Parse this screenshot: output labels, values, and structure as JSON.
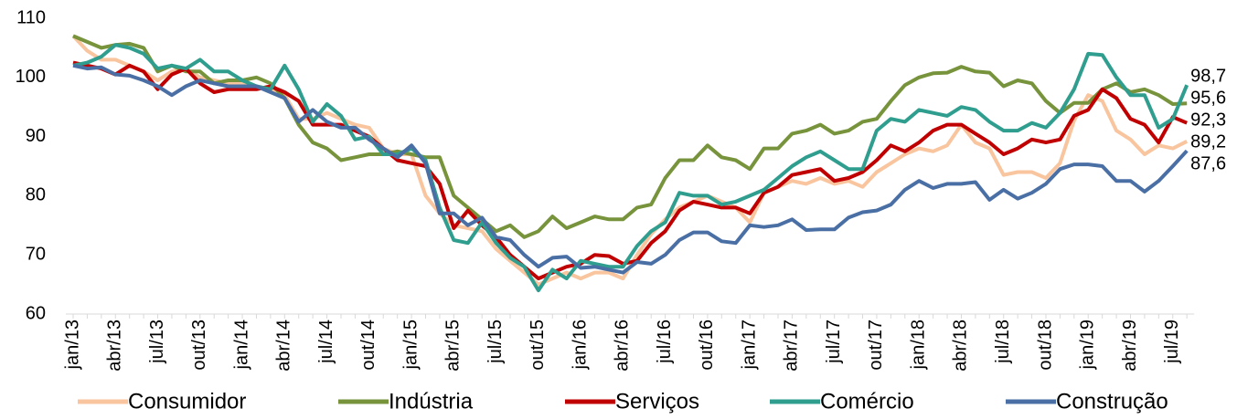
{
  "chart_data": {
    "type": "line",
    "categories": [
      "jan/13",
      null,
      null,
      "abr/13",
      null,
      null,
      "jul/13",
      null,
      null,
      "out/13",
      null,
      null,
      "jan/14",
      null,
      null,
      "abr/14",
      null,
      null,
      "jul/14",
      null,
      null,
      "out/14",
      null,
      null,
      "jan/15",
      null,
      null,
      "abr/15",
      null,
      null,
      "jul/15",
      null,
      null,
      "out/15",
      null,
      null,
      "jan/16",
      null,
      null,
      "abr/16",
      null,
      null,
      "jul/16",
      null,
      null,
      "out/16",
      null,
      null,
      "jan/17",
      null,
      null,
      "abr/17",
      null,
      null,
      "jul/17",
      null,
      null,
      "out/17",
      null,
      null,
      "jan/18",
      null,
      null,
      "abr/18",
      null,
      null,
      "jul/18",
      null,
      null,
      "out/18",
      null,
      null,
      "jan/19",
      null,
      null,
      "abr/19",
      null,
      null,
      "jul/19",
      null
    ],
    "ylim": [
      60,
      110
    ],
    "yticks": [
      60,
      70,
      80,
      90,
      100,
      110
    ],
    "series": [
      {
        "name": "Consumidor",
        "color": "#f9c59e",
        "values": [
          107,
          104.5,
          103,
          103,
          102,
          101,
          99.5,
          101,
          101.5,
          100,
          99.5,
          99,
          99,
          98.5,
          98,
          97,
          93,
          93,
          94,
          93,
          92,
          91.5,
          88,
          87,
          87,
          80,
          77,
          75,
          74.5,
          74,
          71,
          69,
          67,
          65,
          66,
          67,
          66,
          67,
          67,
          66,
          70,
          73.5,
          76,
          78,
          79,
          80,
          79,
          78,
          75.5,
          80.5,
          81.5,
          82.5,
          82,
          83,
          82,
          82.5,
          81.5,
          84,
          85.5,
          87,
          88,
          87.5,
          88.5,
          92,
          89,
          88,
          83.5,
          84,
          84,
          83,
          85.5,
          92.7,
          97,
          96,
          91,
          89.5,
          87,
          88.5,
          88,
          89.2
        ],
        "value_labels": [
          null,
          null,
          null,
          null,
          null,
          null,
          null,
          null,
          null,
          null,
          null,
          null,
          null,
          null,
          null,
          null,
          null,
          null,
          null,
          null,
          null,
          null,
          null,
          null,
          null,
          null,
          null,
          null,
          null,
          null,
          null,
          null,
          null,
          null,
          null,
          null,
          null,
          null,
          null,
          null,
          null,
          null,
          null,
          null,
          null,
          null,
          null,
          null,
          null,
          null,
          null,
          null,
          null,
          null,
          null,
          null,
          null,
          null,
          null,
          null,
          null,
          null,
          null,
          null,
          null,
          null,
          null,
          null,
          null,
          null,
          null,
          null,
          null,
          null,
          null,
          null,
          null,
          null,
          null,
          "89,2"
        ]
      },
      {
        "name": "Indústria",
        "color": "#77933c",
        "values": [
          107,
          106,
          105,
          105.5,
          105.7,
          105,
          101,
          102,
          101,
          101,
          99,
          99.5,
          99.5,
          100,
          99,
          96.5,
          92,
          89,
          88,
          86,
          86.5,
          87,
          87,
          87.5,
          87,
          86.5,
          86.5,
          80,
          78,
          76,
          74,
          75,
          73,
          74,
          76.5,
          74.5,
          75.5,
          76.5,
          76,
          76,
          78,
          78.5,
          83,
          86,
          86,
          88.5,
          86.5,
          86,
          84.5,
          88,
          88,
          90.5,
          91,
          92,
          90.5,
          91,
          92.5,
          93,
          96,
          98.7,
          100,
          100.7,
          100.8,
          101.8,
          101,
          100.8,
          98.5,
          99.5,
          99,
          96,
          94,
          95.7,
          95.7,
          98,
          99,
          97.5,
          98,
          97,
          95.5,
          95.6
        ],
        "value_labels": [
          null,
          null,
          null,
          null,
          null,
          null,
          null,
          null,
          null,
          null,
          null,
          null,
          null,
          null,
          null,
          null,
          null,
          null,
          null,
          null,
          null,
          null,
          null,
          null,
          null,
          null,
          null,
          null,
          null,
          null,
          null,
          null,
          null,
          null,
          null,
          null,
          null,
          null,
          null,
          null,
          null,
          null,
          null,
          null,
          null,
          null,
          null,
          null,
          null,
          null,
          null,
          null,
          null,
          null,
          null,
          null,
          null,
          null,
          null,
          null,
          null,
          null,
          null,
          null,
          null,
          null,
          null,
          null,
          null,
          null,
          null,
          null,
          null,
          null,
          null,
          null,
          null,
          null,
          null,
          "95,6"
        ]
      },
      {
        "name": "Serviços",
        "color": "#c00000",
        "values": [
          102.5,
          102,
          101.5,
          100.5,
          102,
          101,
          98,
          100.5,
          101.5,
          99,
          97.5,
          98,
          98,
          98,
          98.5,
          97.5,
          96,
          92,
          92,
          92,
          91,
          90,
          88,
          86,
          85.5,
          85,
          82,
          74.5,
          77.5,
          75,
          73,
          70,
          68,
          66,
          67,
          68,
          68.5,
          70,
          69.8,
          68.5,
          69,
          72,
          74,
          77.5,
          79,
          78.5,
          78,
          78,
          77,
          80.5,
          81.5,
          83.5,
          84,
          84.5,
          82.5,
          83,
          84,
          86,
          88.5,
          87.5,
          89,
          91,
          92,
          92,
          90.5,
          89,
          87,
          88,
          89.5,
          89,
          89.5,
          93.5,
          94.5,
          98,
          96.5,
          93,
          92,
          89,
          93.3,
          92.3
        ],
        "value_labels": [
          null,
          null,
          null,
          null,
          null,
          null,
          null,
          null,
          null,
          null,
          null,
          null,
          null,
          null,
          null,
          null,
          null,
          null,
          null,
          null,
          null,
          null,
          null,
          null,
          null,
          null,
          null,
          null,
          null,
          null,
          null,
          null,
          null,
          null,
          null,
          null,
          null,
          null,
          null,
          null,
          null,
          null,
          null,
          null,
          null,
          null,
          null,
          null,
          null,
          null,
          null,
          null,
          null,
          null,
          null,
          null,
          null,
          null,
          null,
          null,
          null,
          null,
          null,
          null,
          null,
          null,
          null,
          null,
          null,
          null,
          null,
          null,
          null,
          null,
          null,
          null,
          null,
          null,
          null,
          "92,3"
        ]
      },
      {
        "name": "Comércio",
        "color": "#2f9e8f",
        "values": [
          102,
          102.5,
          103.5,
          105.5,
          105,
          104,
          101.5,
          102,
          101.5,
          103,
          101,
          101,
          99.5,
          98.5,
          98,
          102,
          98,
          92.5,
          95.5,
          93.5,
          89.5,
          90,
          87,
          87,
          88,
          86,
          78,
          72.5,
          72,
          75.5,
          72,
          69.5,
          68,
          64,
          67.5,
          66,
          69,
          68.5,
          68,
          68,
          71.5,
          74,
          75.5,
          80.5,
          80,
          80,
          78.5,
          79,
          80,
          81,
          83,
          85,
          86.5,
          87.5,
          86,
          84.5,
          84.5,
          91,
          93,
          92.5,
          94.5,
          94,
          93.5,
          95,
          94.5,
          92.5,
          91,
          91,
          92.3,
          91.5,
          94,
          98,
          104,
          103.8,
          100,
          97,
          97,
          91.5,
          93,
          98.7
        ],
        "value_labels": [
          null,
          null,
          null,
          null,
          null,
          null,
          null,
          null,
          null,
          null,
          null,
          null,
          null,
          null,
          null,
          null,
          null,
          null,
          null,
          null,
          null,
          null,
          null,
          null,
          null,
          null,
          null,
          null,
          null,
          null,
          null,
          null,
          null,
          null,
          null,
          null,
          null,
          null,
          null,
          null,
          null,
          null,
          null,
          null,
          null,
          null,
          null,
          null,
          null,
          null,
          null,
          null,
          null,
          null,
          null,
          null,
          null,
          null,
          null,
          null,
          null,
          null,
          null,
          null,
          null,
          null,
          null,
          null,
          null,
          null,
          null,
          null,
          null,
          null,
          null,
          null,
          null,
          null,
          null,
          "98,7"
        ]
      },
      {
        "name": "Construção",
        "color": "#4a6fa5",
        "values": [
          102,
          101.5,
          101.7,
          100.5,
          100.3,
          99.5,
          98.5,
          97,
          98.5,
          99.5,
          99,
          98.5,
          98.5,
          98.5,
          97.5,
          96.5,
          92.5,
          94.5,
          92.5,
          91.5,
          91.5,
          89.5,
          88,
          86.5,
          88.5,
          85.5,
          77,
          77,
          75,
          76.3,
          73,
          72.5,
          70,
          68,
          69.5,
          69.7,
          67.8,
          68,
          67.5,
          67,
          68.8,
          68.5,
          70,
          72.5,
          73.8,
          73.8,
          72.3,
          72,
          75,
          74.7,
          75,
          76,
          74.2,
          74.3,
          74.3,
          76.3,
          77.2,
          77.5,
          78.5,
          81,
          82.5,
          81.3,
          82,
          82,
          82.3,
          79.3,
          81,
          79.5,
          80.5,
          82,
          84.5,
          85.3,
          85.3,
          85,
          82.5,
          82.5,
          80.7,
          82.5,
          85,
          87.6
        ],
        "value_labels": [
          null,
          null,
          null,
          null,
          null,
          null,
          null,
          null,
          null,
          null,
          null,
          null,
          null,
          null,
          null,
          null,
          null,
          null,
          null,
          null,
          null,
          null,
          null,
          null,
          null,
          null,
          null,
          null,
          null,
          null,
          null,
          null,
          null,
          null,
          null,
          null,
          null,
          null,
          null,
          null,
          null,
          null,
          null,
          null,
          null,
          null,
          null,
          null,
          null,
          null,
          null,
          null,
          null,
          null,
          null,
          null,
          null,
          null,
          null,
          null,
          null,
          null,
          null,
          null,
          null,
          null,
          null,
          null,
          null,
          null,
          null,
          null,
          null,
          null,
          null,
          null,
          null,
          null,
          null,
          "87,6"
        ]
      }
    ]
  }
}
